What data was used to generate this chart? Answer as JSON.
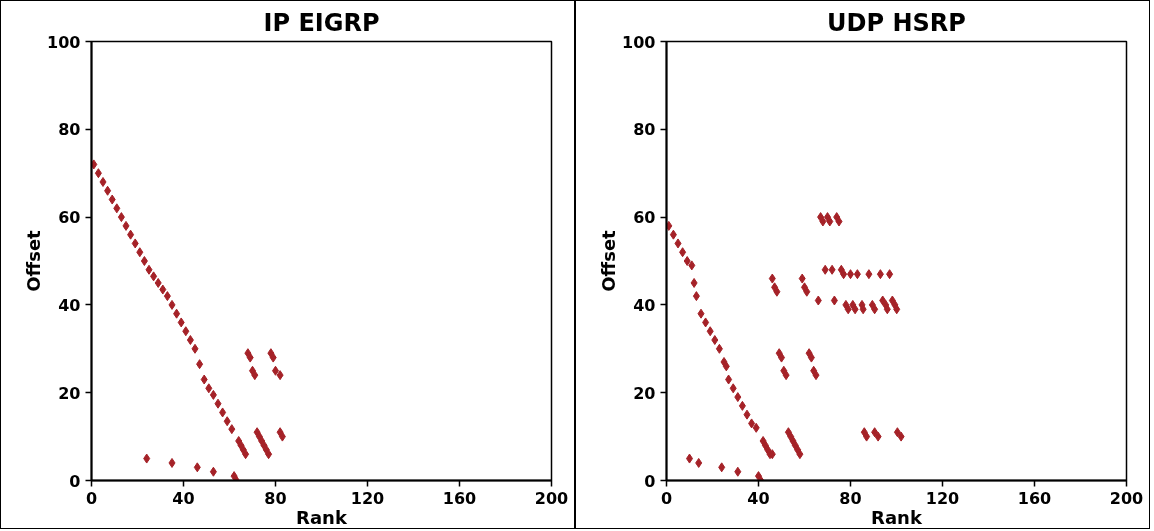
{
  "chart_data": [
    {
      "type": "scatter",
      "title": "IP EIGRP",
      "xlabel": "Rank",
      "ylabel": "Offset",
      "marker": "diamond",
      "grid": false,
      "xlim": [
        0,
        200
      ],
      "xticks": [
        0,
        40,
        80,
        120,
        160,
        200
      ],
      "ylim": [
        0,
        100
      ],
      "yticks": [
        0,
        20,
        40,
        60,
        80,
        100
      ],
      "series": [
        {
          "color": "#a52228",
          "x": [
            1,
            3,
            5,
            7,
            9,
            11,
            13,
            15,
            17,
            19,
            21,
            23,
            25,
            27,
            29,
            31,
            33,
            35,
            37,
            39,
            41,
            43,
            45,
            47,
            49,
            51,
            53,
            55,
            57,
            59,
            61,
            64,
            65,
            66,
            67,
            24,
            35,
            46,
            53,
            62,
            63,
            68,
            69,
            70,
            71,
            78,
            79,
            80,
            82,
            72,
            73,
            74,
            75,
            76,
            77,
            82,
            83
          ],
          "values": [
            72,
            70,
            68,
            66,
            64,
            62,
            60,
            58,
            56,
            54,
            52,
            50,
            48,
            46.5,
            45,
            43.5,
            42,
            40,
            38,
            36,
            34,
            32,
            30,
            26.5,
            23,
            21,
            19.5,
            17.5,
            15.5,
            13.5,
            11.7,
            9,
            8,
            7,
            6,
            5,
            4,
            3,
            2,
            1,
            0,
            29,
            28,
            25,
            24,
            29,
            28,
            25,
            24,
            11,
            10,
            9,
            8,
            7,
            6,
            11,
            10
          ]
        }
      ]
    },
    {
      "type": "scatter",
      "title": "UDP HSRP",
      "xlabel": "Rank",
      "ylabel": "Offset",
      "marker": "diamond",
      "grid": false,
      "xlim": [
        0,
        200
      ],
      "xticks": [
        0,
        40,
        80,
        120,
        160,
        200
      ],
      "ylim": [
        0,
        100
      ],
      "yticks": [
        0,
        20,
        40,
        60,
        80,
        100
      ],
      "series": [
        {
          "color": "#a52228",
          "x": [
            1,
            3,
            5,
            7,
            9,
            11,
            12,
            13,
            15,
            17,
            19,
            21,
            23,
            25,
            26,
            27,
            29,
            31,
            33,
            35,
            37,
            39,
            42,
            43,
            44,
            45,
            46,
            10,
            14,
            24,
            31,
            40,
            41,
            46,
            47,
            48,
            49,
            50,
            51,
            52,
            53,
            54,
            55,
            56,
            57,
            58,
            59,
            60,
            61,
            62,
            63,
            64,
            65,
            66,
            67,
            68,
            70,
            71,
            74,
            75,
            69,
            72,
            76,
            77,
            80,
            83,
            88,
            93,
            97,
            73,
            78,
            79,
            81,
            82,
            85,
            85.5,
            89.5,
            90.5,
            94,
            95.3,
            96,
            98.2,
            99.3,
            100.1,
            86,
            87,
            90.5,
            92,
            100.4,
            102
          ],
          "values": [
            58,
            56,
            54,
            52,
            50,
            49,
            45,
            42,
            38,
            36,
            34,
            32,
            30,
            27,
            26,
            23,
            21,
            19,
            17,
            15,
            13,
            12,
            9,
            8,
            7,
            6,
            6,
            5,
            4,
            3,
            2,
            1,
            0,
            46,
            44,
            43,
            29,
            28,
            25,
            24,
            11,
            10,
            9,
            8,
            7,
            6,
            46,
            44,
            43,
            29,
            28,
            25,
            24,
            41,
            60,
            59,
            60,
            59,
            60,
            59,
            48,
            48,
            48,
            47,
            47,
            47,
            47,
            47,
            47,
            41,
            40,
            39,
            40,
            39,
            40,
            39,
            40,
            39,
            41,
            40,
            39,
            41,
            40,
            39,
            11,
            10,
            11,
            10,
            11,
            10
          ]
        }
      ]
    }
  ]
}
